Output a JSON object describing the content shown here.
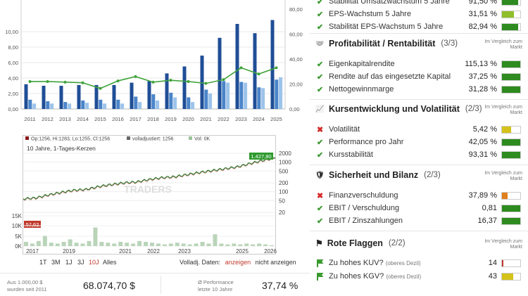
{
  "top_chart": {
    "years": [
      "2011",
      "2012",
      "2013",
      "2014",
      "2015",
      "2016",
      "2017",
      "2018",
      "2019",
      "2020",
      "2021",
      "2022",
      "2023",
      "2024",
      "2025"
    ],
    "left_ticks": [
      "0,00",
      "2,00",
      "4,00",
      "6,00",
      "8,00",
      "10,00"
    ],
    "right_ticks": [
      "0",
      "20",
      "40",
      "60",
      "80"
    ],
    "series": [
      {
        "color": "#1f4e96",
        "values": [
          3.2,
          3.0,
          3.0,
          3.1,
          3.1,
          3.1,
          3.4,
          3.6,
          4.6,
          5.5,
          6.9,
          9.2,
          11.0,
          9.8,
          11.5
        ]
      },
      {
        "color": "#4a84c9",
        "values": [
          1.2,
          1.0,
          0.9,
          1.1,
          1.2,
          1.2,
          1.6,
          1.9,
          2.1,
          1.5,
          2.5,
          3.6,
          3.5,
          2.8,
          3.8
        ]
      },
      {
        "color": "#9dc3ea",
        "values": [
          0.7,
          0.7,
          0.7,
          0.8,
          0.7,
          0.7,
          0.9,
          1.1,
          1.5,
          0.9,
          2.0,
          3.4,
          3.4,
          2.7,
          4.1
        ]
      }
    ],
    "line": {
      "color": "#3fa33a",
      "values": [
        22.0,
        22.0,
        21.5,
        21.0,
        16.5,
        22.5,
        26.0,
        21.5,
        23.0,
        22.0,
        20.5,
        23.5,
        33.0,
        28.0,
        33.0
      ]
    }
  },
  "price_chart": {
    "legend": [
      "Op:1256, Hi:1283, Lo:1255, Cl:1256",
      "volladjustiert: 1256",
      "Vol: 0K"
    ],
    "subtitle": "10 Jahre, 1-Tages-Kerzen",
    "current_price": "1.427,80",
    "start_price": "57,62",
    "right_ticks": [
      "2000",
      "1000",
      "500",
      "200",
      "100",
      "50",
      "20"
    ],
    "volume_ticks": [
      "15K",
      "10K",
      "5K",
      "0K"
    ],
    "x_ticks": [
      "2017",
      "2019",
      "2021",
      "2022",
      "2023",
      "2025",
      "2026"
    ],
    "watermark": "TRADERS",
    "points": [
      [
        0,
        57.6
      ],
      [
        0.05,
        62
      ],
      [
        0.1,
        78
      ],
      [
        0.15,
        95
      ],
      [
        0.2,
        112
      ],
      [
        0.25,
        120
      ],
      [
        0.3,
        150
      ],
      [
        0.35,
        175
      ],
      [
        0.4,
        200
      ],
      [
        0.45,
        215
      ],
      [
        0.5,
        260
      ],
      [
        0.55,
        300
      ],
      [
        0.6,
        320
      ],
      [
        0.65,
        380
      ],
      [
        0.7,
        450
      ],
      [
        0.75,
        520
      ],
      [
        0.8,
        600
      ],
      [
        0.85,
        700
      ],
      [
        0.9,
        900
      ],
      [
        0.95,
        1150
      ],
      [
        1.0,
        1427.8
      ]
    ],
    "volume": [
      0.5,
      0.3,
      0.6,
      1.2,
      0.4,
      0.3,
      0.5,
      0.8,
      0.4,
      0.3,
      0.6,
      2.2,
      0.5,
      0.4,
      0.3,
      0.5,
      0.4,
      0.3,
      0.6,
      0.5,
      0.4,
      0.3,
      0.2,
      0.3,
      0.4,
      0.3,
      0.2,
      0.3,
      0.5,
      0.3,
      1.4,
      0.3,
      0.2,
      0.3,
      0.2,
      0.3,
      0.2,
      0.3,
      0.2,
      0.1
    ]
  },
  "ranges": {
    "items": [
      "1T",
      "3M",
      "1J",
      "3J",
      "10J",
      "Alles"
    ],
    "active": "10J",
    "volladj_label": "Volladj. Daten:",
    "show": "anzeigen",
    "hide": "nicht anzeigen"
  },
  "footer": {
    "invest_label1": "Aus 1.000,00 $",
    "invest_label2": "wurden seit 2011",
    "invest_value": "68.074,70 $",
    "perf_label1": "Ø Performance",
    "perf_label2": "letzte 10 Jahre",
    "perf_value": "37,74 %"
  },
  "right": {
    "top_rows": [
      {
        "label": "Stabilität Umsatzwachstum 5 Jahre",
        "value": "91,50 %",
        "ok": true,
        "fill": 0.9,
        "color": "#2e8b1f"
      },
      {
        "label": "EPS-Wachstum 5 Jahre",
        "value": "31,51 %",
        "ok": true,
        "fill": 0.65,
        "color": "#8fbf2a"
      },
      {
        "label": "Stabilität EPS-Wachstum 5 Jahre",
        "value": "82,94 %",
        "ok": true,
        "fill": 0.9,
        "color": "#2e8b1f"
      }
    ],
    "vgl": "Im Vergleich zum Markt",
    "sections": [
      {
        "title": "Profitabilität / Rentabilität",
        "count": "(3/3)",
        "rows": [
          {
            "label": "Eigenkapitalrendite",
            "value": "115,13 %",
            "ok": true,
            "fill": 1.0,
            "color": "#2e8b1f"
          },
          {
            "label": "Rendite auf das eingesetzte Kapital",
            "value": "37,25 %",
            "ok": true,
            "fill": 1.0,
            "color": "#2e8b1f"
          },
          {
            "label": "Nettogewinnmarge",
            "value": "31,28 %",
            "ok": true,
            "fill": 1.0,
            "color": "#2e8b1f"
          }
        ]
      },
      {
        "title": "Kursentwicklung und Volatilität",
        "count": "(2/3)",
        "rows": [
          {
            "label": "Volatilität",
            "value": "5,42 %",
            "ok": false,
            "fill": 0.5,
            "color": "#d4c21a"
          },
          {
            "label": "Performance pro Jahr",
            "value": "42,05 %",
            "ok": true,
            "fill": 1.0,
            "color": "#2e8b1f"
          },
          {
            "label": "Kursstabilität",
            "value": "93,31 %",
            "ok": true,
            "fill": 1.0,
            "color": "#2e8b1f"
          }
        ]
      },
      {
        "title": "Sicherheit und Bilanz",
        "count": "(2/3)",
        "rows": [
          {
            "label": "Finanzverschuldung",
            "value": "37,89 %",
            "ok": false,
            "fill": 0.3,
            "color": "#e0801e"
          },
          {
            "label": "EBIT / Verschuldung",
            "value": "0,81",
            "ok": true,
            "fill": 1.0,
            "color": "#2e8b1f"
          },
          {
            "label": "EBIT / Zinszahlungen",
            "value": "16,37",
            "ok": true,
            "fill": 1.0,
            "color": "#2e8b1f"
          }
        ]
      }
    ],
    "flags": {
      "title": "Rote Flaggen",
      "count": "(2/2)",
      "rows": [
        {
          "label": "Zu hohes KUV?",
          "note": "(oberes Dezil)",
          "value": "14",
          "fill": 0.08,
          "color": "#c0392b"
        },
        {
          "label": "Zu hohes KGV?",
          "note": "(oberes Dezil)",
          "value": "43",
          "fill": 0.6,
          "color": "#d4c21a"
        }
      ]
    }
  }
}
